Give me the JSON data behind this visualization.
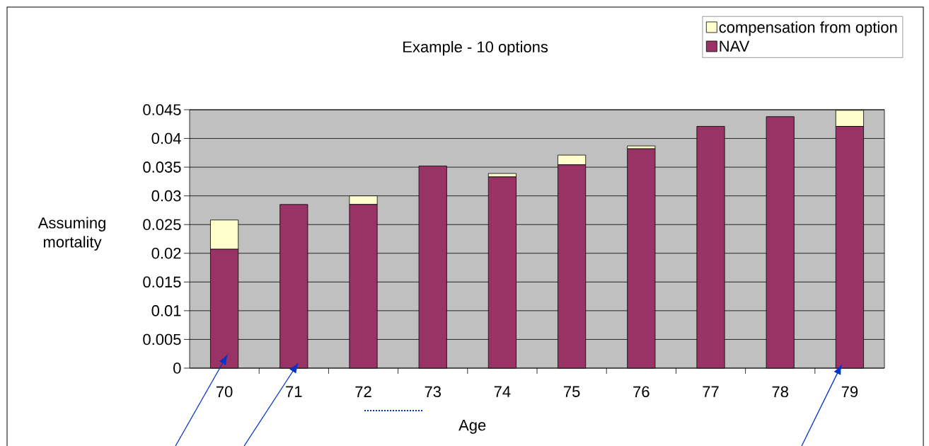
{
  "chart_data": {
    "type": "bar",
    "stacked": true,
    "title": "Example - 10 options",
    "xlabel": "Age",
    "ylabel": "Assuming mortality",
    "categories": [
      "70",
      "71",
      "72",
      "73",
      "74",
      "75",
      "76",
      "77",
      "78",
      "79"
    ],
    "series": [
      {
        "name": "NAV",
        "color": "#993366",
        "values": [
          0.0207,
          0.0285,
          0.0285,
          0.0352,
          0.0333,
          0.0354,
          0.0382,
          0.0421,
          0.0438,
          0.0421
        ]
      },
      {
        "name": "compensation from option",
        "color": "#ffffcc",
        "values": [
          0.0051,
          0,
          0.0015,
          0,
          0.0006,
          0.0017,
          0.0005,
          0,
          0,
          0.0028
        ]
      }
    ],
    "ylim": [
      0,
      0.045
    ],
    "yticks": [
      0,
      0.005,
      0.01,
      0.015,
      0.02,
      0.025,
      0.03,
      0.035,
      0.04,
      0.045
    ],
    "grid": "y",
    "legend": "top right"
  }
}
